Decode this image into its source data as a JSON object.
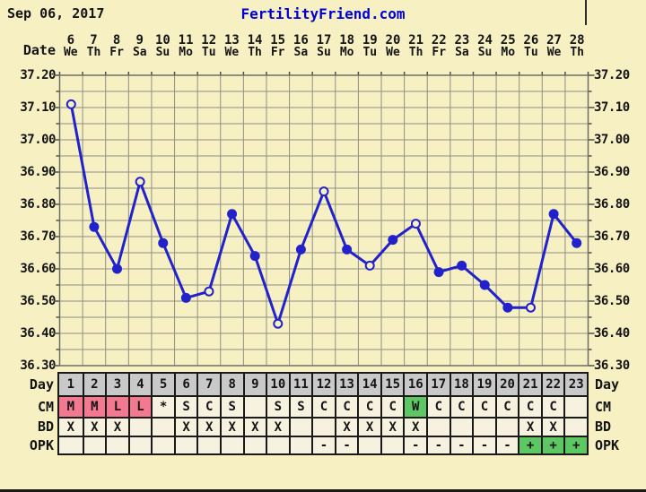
{
  "header": {
    "date": "Sep 06, 2017",
    "site": "FertilityFriend.com"
  },
  "labels": {
    "date_header": "Date",
    "day_row": "Day",
    "cm_row": "CM",
    "bd_row": "BD",
    "opk_row": "OPK"
  },
  "colors": {
    "background": "#f6f0c3",
    "line": "#2222cc",
    "link_blue": "#0000d6",
    "grid": "#8f8f85",
    "plot_border": "#6e6e64",
    "tick": "#50504a",
    "day_row_bg": "#c9c9c9",
    "cell_bg": "#f7f2df",
    "menses_bg": "#f2798f",
    "fertile_bg": "#5cc763",
    "text": "#141414",
    "table_border": "#1a1a1a"
  },
  "chart_data": {
    "type": "line",
    "title": "Basal body temperature chart (FertilityFriend.com)",
    "x_dates": [
      "6",
      "7",
      "8",
      "9",
      "10",
      "11",
      "12",
      "13",
      "14",
      "15",
      "16",
      "17",
      "18",
      "19",
      "20",
      "21",
      "22",
      "23",
      "24",
      "25",
      "26",
      "27",
      "28"
    ],
    "x_weekdays": [
      "We",
      "Th",
      "Fr",
      "Sa",
      "Su",
      "Mo",
      "Tu",
      "We",
      "Th",
      "Fr",
      "Sa",
      "Su",
      "Mo",
      "Tu",
      "We",
      "Th",
      "Fr",
      "Sa",
      "Su",
      "Mo",
      "Tu",
      "We",
      "Th"
    ],
    "cycle_days": [
      1,
      2,
      3,
      4,
      5,
      6,
      7,
      8,
      9,
      10,
      11,
      12,
      13,
      14,
      15,
      16,
      17,
      18,
      19,
      20,
      21,
      22,
      23
    ],
    "values": [
      37.11,
      36.73,
      36.6,
      36.87,
      36.68,
      36.51,
      36.53,
      36.77,
      36.64,
      36.43,
      36.66,
      36.84,
      36.66,
      36.61,
      36.69,
      36.74,
      36.59,
      36.61,
      36.55,
      36.48,
      36.48,
      36.77,
      36.68
    ],
    "open_circle_days": [
      1,
      4,
      7,
      10,
      12,
      14,
      16,
      21
    ],
    "ylim": [
      36.3,
      37.2
    ],
    "grid_step": 0.05,
    "y_tick_labels": [
      "37.20",
      "37.10",
      "37.00",
      "36.90",
      "36.80",
      "36.70",
      "36.60",
      "36.50",
      "36.40",
      "36.30"
    ],
    "grid": true,
    "legend": "none"
  },
  "table": {
    "rows": [
      {
        "key": "day",
        "label": "Day",
        "cells": [
          {
            "t": "1",
            "bg": "day"
          },
          {
            "t": "2",
            "bg": "day"
          },
          {
            "t": "3",
            "bg": "day"
          },
          {
            "t": "4",
            "bg": "day"
          },
          {
            "t": "5",
            "bg": "day"
          },
          {
            "t": "6",
            "bg": "day"
          },
          {
            "t": "7",
            "bg": "day"
          },
          {
            "t": "8",
            "bg": "day"
          },
          {
            "t": "9",
            "bg": "day"
          },
          {
            "t": "10",
            "bg": "day"
          },
          {
            "t": "11",
            "bg": "day"
          },
          {
            "t": "12",
            "bg": "day"
          },
          {
            "t": "13",
            "bg": "day"
          },
          {
            "t": "14",
            "bg": "day"
          },
          {
            "t": "15",
            "bg": "day"
          },
          {
            "t": "16",
            "bg": "day"
          },
          {
            "t": "17",
            "bg": "day"
          },
          {
            "t": "18",
            "bg": "day"
          },
          {
            "t": "19",
            "bg": "day"
          },
          {
            "t": "20",
            "bg": "day"
          },
          {
            "t": "21",
            "bg": "day"
          },
          {
            "t": "22",
            "bg": "day"
          },
          {
            "t": "23",
            "bg": "day"
          }
        ]
      },
      {
        "key": "cm",
        "label": "CM",
        "cells": [
          {
            "t": "M",
            "bg": "menses"
          },
          {
            "t": "M",
            "bg": "menses"
          },
          {
            "t": "L",
            "bg": "menses"
          },
          {
            "t": "L",
            "bg": "menses"
          },
          {
            "t": "*",
            "bg": ""
          },
          {
            "t": "S",
            "bg": ""
          },
          {
            "t": "C",
            "bg": ""
          },
          {
            "t": "S",
            "bg": ""
          },
          {
            "t": "",
            "bg": ""
          },
          {
            "t": "S",
            "bg": ""
          },
          {
            "t": "S",
            "bg": ""
          },
          {
            "t": "C",
            "bg": ""
          },
          {
            "t": "C",
            "bg": ""
          },
          {
            "t": "C",
            "bg": ""
          },
          {
            "t": "C",
            "bg": ""
          },
          {
            "t": "W",
            "bg": "fertile"
          },
          {
            "t": "C",
            "bg": ""
          },
          {
            "t": "C",
            "bg": ""
          },
          {
            "t": "C",
            "bg": ""
          },
          {
            "t": "C",
            "bg": ""
          },
          {
            "t": "C",
            "bg": ""
          },
          {
            "t": "C",
            "bg": ""
          },
          {
            "t": "",
            "bg": ""
          }
        ]
      },
      {
        "key": "bd",
        "label": "BD",
        "cells": [
          {
            "t": "X",
            "bg": ""
          },
          {
            "t": "X",
            "bg": ""
          },
          {
            "t": "X",
            "bg": ""
          },
          {
            "t": "",
            "bg": ""
          },
          {
            "t": "",
            "bg": ""
          },
          {
            "t": "X",
            "bg": ""
          },
          {
            "t": "X",
            "bg": ""
          },
          {
            "t": "X",
            "bg": ""
          },
          {
            "t": "X",
            "bg": ""
          },
          {
            "t": "X",
            "bg": ""
          },
          {
            "t": "",
            "bg": ""
          },
          {
            "t": "",
            "bg": ""
          },
          {
            "t": "X",
            "bg": ""
          },
          {
            "t": "X",
            "bg": ""
          },
          {
            "t": "X",
            "bg": ""
          },
          {
            "t": "X",
            "bg": ""
          },
          {
            "t": "",
            "bg": ""
          },
          {
            "t": "",
            "bg": ""
          },
          {
            "t": "",
            "bg": ""
          },
          {
            "t": "",
            "bg": ""
          },
          {
            "t": "X",
            "bg": ""
          },
          {
            "t": "X",
            "bg": ""
          },
          {
            "t": "",
            "bg": ""
          }
        ]
      },
      {
        "key": "opk",
        "label": "OPK",
        "cells": [
          {
            "t": "",
            "bg": ""
          },
          {
            "t": "",
            "bg": ""
          },
          {
            "t": "",
            "bg": ""
          },
          {
            "t": "",
            "bg": ""
          },
          {
            "t": "",
            "bg": ""
          },
          {
            "t": "",
            "bg": ""
          },
          {
            "t": "",
            "bg": ""
          },
          {
            "t": "",
            "bg": ""
          },
          {
            "t": "",
            "bg": ""
          },
          {
            "t": "",
            "bg": ""
          },
          {
            "t": "",
            "bg": ""
          },
          {
            "t": "-",
            "bg": ""
          },
          {
            "t": "-",
            "bg": ""
          },
          {
            "t": "",
            "bg": ""
          },
          {
            "t": "",
            "bg": ""
          },
          {
            "t": "-",
            "bg": ""
          },
          {
            "t": "-",
            "bg": ""
          },
          {
            "t": "-",
            "bg": ""
          },
          {
            "t": "-",
            "bg": ""
          },
          {
            "t": "-",
            "bg": ""
          },
          {
            "t": "+",
            "bg": "fertile"
          },
          {
            "t": "+",
            "bg": "fertile"
          },
          {
            "t": "+",
            "bg": "fertile"
          }
        ]
      }
    ]
  }
}
